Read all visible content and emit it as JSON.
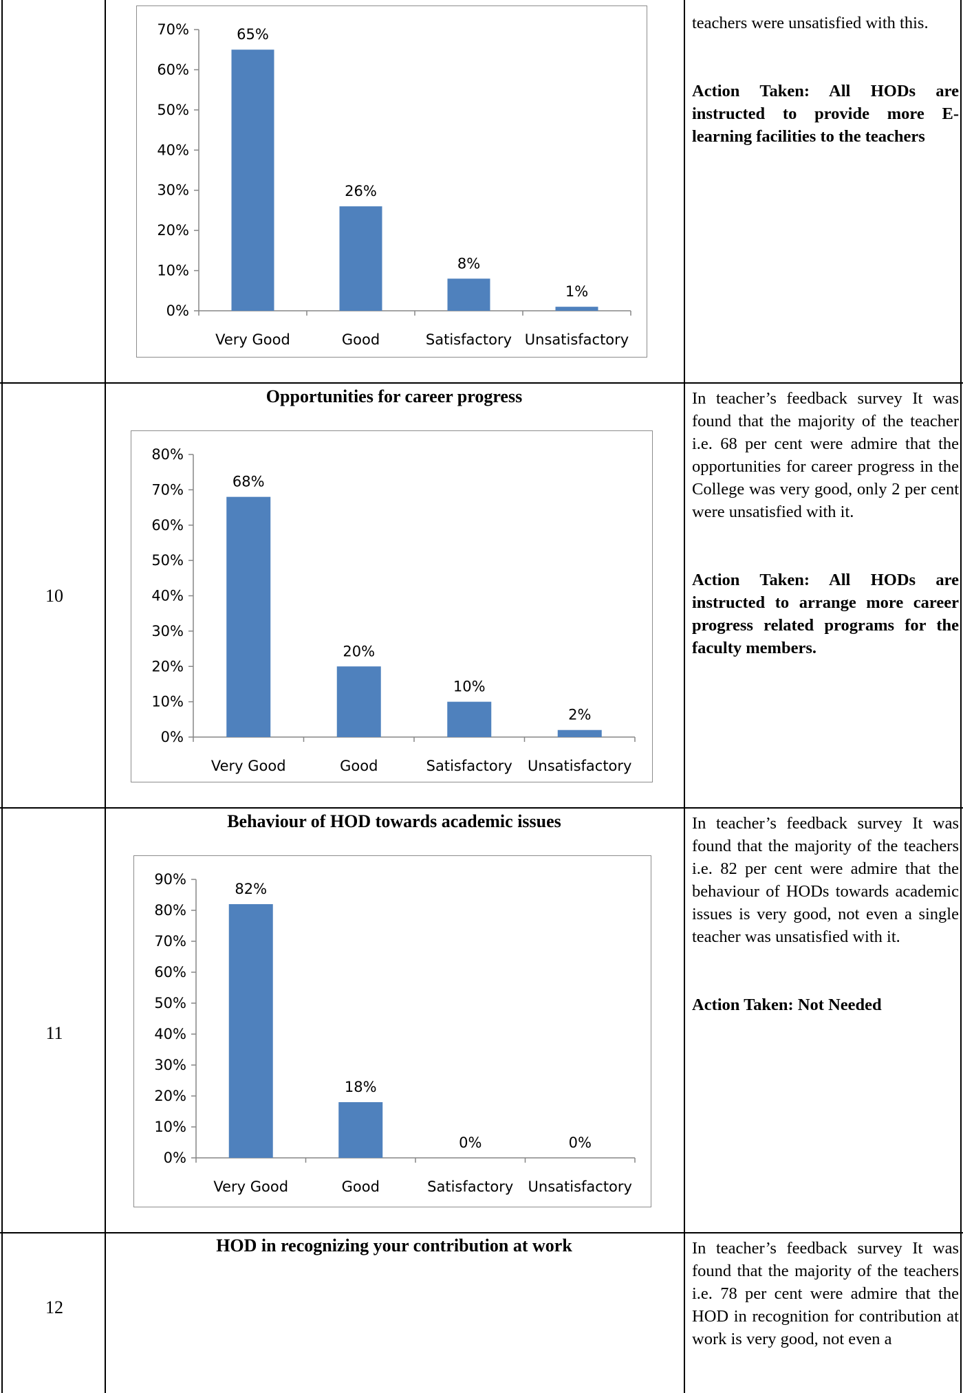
{
  "rows": [
    {
      "number": "",
      "title": "",
      "chart_data": {
        "type": "bar",
        "categories": [
          "Very Good",
          "Good",
          "Satisfactory",
          "Unsatisfactory"
        ],
        "values": [
          65,
          26,
          8,
          1
        ],
        "value_labels": [
          "65%",
          "26%",
          "8%",
          "1%"
        ],
        "y_ticks": [
          "0%",
          "10%",
          "20%",
          "30%",
          "40%",
          "50%",
          "60%",
          "70%"
        ],
        "ylim": [
          0,
          70
        ],
        "bar_color": "#4f81bd",
        "grid": false,
        "legend": "none"
      },
      "text": "teachers were unsatisfied with this.",
      "action": "Action Taken: All HODs are instructed to provide more E-learning facilities to the teachers"
    },
    {
      "number": "10",
      "title": "Opportunities for career progress",
      "chart_data": {
        "type": "bar",
        "categories": [
          "Very Good",
          "Good",
          "Satisfactory",
          "Unsatisfactory"
        ],
        "values": [
          68,
          20,
          10,
          2
        ],
        "value_labels": [
          "68%",
          "20%",
          "10%",
          "2%"
        ],
        "y_ticks": [
          "0%",
          "10%",
          "20%",
          "30%",
          "40%",
          "50%",
          "60%",
          "70%",
          "80%"
        ],
        "ylim": [
          0,
          80
        ],
        "bar_color": "#4f81bd",
        "grid": false,
        "legend": "none"
      },
      "text": "In teacher’s feedback survey It was found that the majority of the teacher i.e. 68 per cent were admire that the opportunities for career progress in the College was very good, only 2 per cent were unsatisfied with it.",
      "action": "Action Taken: All HODs are instructed to arrange more career progress related programs for the faculty members."
    },
    {
      "number": "11",
      "title": "Behaviour of HOD towards academic issues",
      "chart_data": {
        "type": "bar",
        "categories": [
          "Very Good",
          "Good",
          "Satisfactory",
          "Unsatisfactory"
        ],
        "values": [
          82,
          18,
          0,
          0
        ],
        "value_labels": [
          "82%",
          "18%",
          "0%",
          "0%"
        ],
        "y_ticks": [
          "0%",
          "10%",
          "20%",
          "30%",
          "40%",
          "50%",
          "60%",
          "70%",
          "80%",
          "90%"
        ],
        "ylim": [
          0,
          90
        ],
        "bar_color": "#4f81bd",
        "grid": false,
        "legend": "none"
      },
      "text": "In teacher’s feedback survey It was found that the majority of the teachers i.e. 82 per cent were admire that the behaviour of HODs towards academic issues is very good, not even a single teacher was unsatisfied with it.",
      "action": "Action Taken: Not Needed"
    },
    {
      "number": "12",
      "title": "HOD in recognizing your contribution at work",
      "text": "In teacher’s feedback survey It was found that the majority of the teachers i.e. 78 per cent were admire that the HOD in recognition for contribution at work is very good, not even a"
    }
  ]
}
